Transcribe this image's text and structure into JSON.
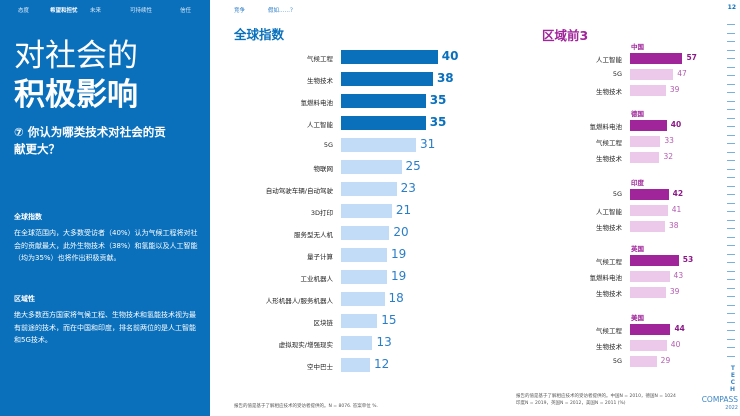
{
  "sidebar": {
    "nav": [
      "态度",
      "希望和担忧",
      "未来",
      "可持续性",
      "信任"
    ],
    "active_nav": 1,
    "title_line1": "对社会的",
    "title_line2": "积极影响",
    "question": "⑦ 你认为哪类技术对社会的贡献更大？",
    "section1_heading": "全球指数",
    "section1_text": "在全球范围内，大多数受访者（40%）认为气候工程将对社会的贡献最大，此外生物技术（38%）和氢能以及人工智能（均为35%）也将作出积极贡献。",
    "section2_heading": "区域性",
    "section2_text": "绝大多数西方国家将气候工程、生物技术和氢能技术视为最有前途的技术，而在中国和印度，排名前两位的是人工智能和5G技术。"
  },
  "topnav": [
    "竞争",
    "假如……？"
  ],
  "page_number": "12",
  "colors": {
    "sidebar": "#0a70bc",
    "global_top": "#0a70bc",
    "global_other": "#c2dbf7",
    "region_top": "#a0259a",
    "region_other": "#ecc9ea"
  },
  "global": {
    "title": "全球指数",
    "items": [
      {
        "label": "气候工程",
        "value": 40,
        "top": true
      },
      {
        "label": "生物技术",
        "value": 38,
        "top": true
      },
      {
        "label": "氢燃料电池",
        "value": 35,
        "top": true
      },
      {
        "label": "人工智能",
        "value": 35,
        "top": true
      },
      {
        "label": "5G",
        "value": 31
      },
      {
        "label": "物联网",
        "value": 25
      },
      {
        "label": "自动驾驶车辆/自动驾驶",
        "value": 23
      },
      {
        "label": "3D打印",
        "value": 21
      },
      {
        "label": "服务型无人机",
        "value": 20
      },
      {
        "label": "量子计算",
        "value": 19
      },
      {
        "label": "工业机器人",
        "value": 19
      },
      {
        "label": "人形机器人/服务机器人",
        "value": 18
      },
      {
        "label": "区块链",
        "value": 15
      },
      {
        "label": "虚拟现实/增强现实",
        "value": 13
      },
      {
        "label": "空中巴士",
        "value": 12
      }
    ],
    "note": "报告的值是基于了解相应技术的受访者提供的。N = 8076. 答案单位 %."
  },
  "regional": {
    "title": "区域前3",
    "regions": [
      {
        "name": "中国",
        "items": [
          {
            "label": "人工智能",
            "value": 57
          },
          {
            "label": "5G",
            "value": 47
          },
          {
            "label": "生物技术",
            "value": 39
          }
        ]
      },
      {
        "name": "德国",
        "items": [
          {
            "label": "氢燃料电池",
            "value": 40
          },
          {
            "label": "气候工程",
            "value": 33
          },
          {
            "label": "生物技术",
            "value": 32
          }
        ]
      },
      {
        "name": "印度",
        "items": [
          {
            "label": "5G",
            "value": 42
          },
          {
            "label": "人工智能",
            "value": 41
          },
          {
            "label": "生物技术",
            "value": 38
          }
        ]
      },
      {
        "name": "英国",
        "items": [
          {
            "label": "气候工程",
            "value": 53
          },
          {
            "label": "氢燃料电池",
            "value": 43
          },
          {
            "label": "生物技术",
            "value": 39
          }
        ]
      },
      {
        "name": "美国",
        "items": [
          {
            "label": "气候工程",
            "value": 44
          },
          {
            "label": "生物技术",
            "value": 40
          },
          {
            "label": "5G",
            "value": 29
          }
        ]
      }
    ],
    "note_line1": "报告的值是基于了解相应技术的受访者提供的。中国N = 2010，德国N = 1024",
    "note_line2": "印度N = 2019，英国N = 2012，美国N = 2011 (%)"
  },
  "logo": {
    "vertical": "TECH",
    "word": "COMPASS",
    "year": "2022"
  }
}
